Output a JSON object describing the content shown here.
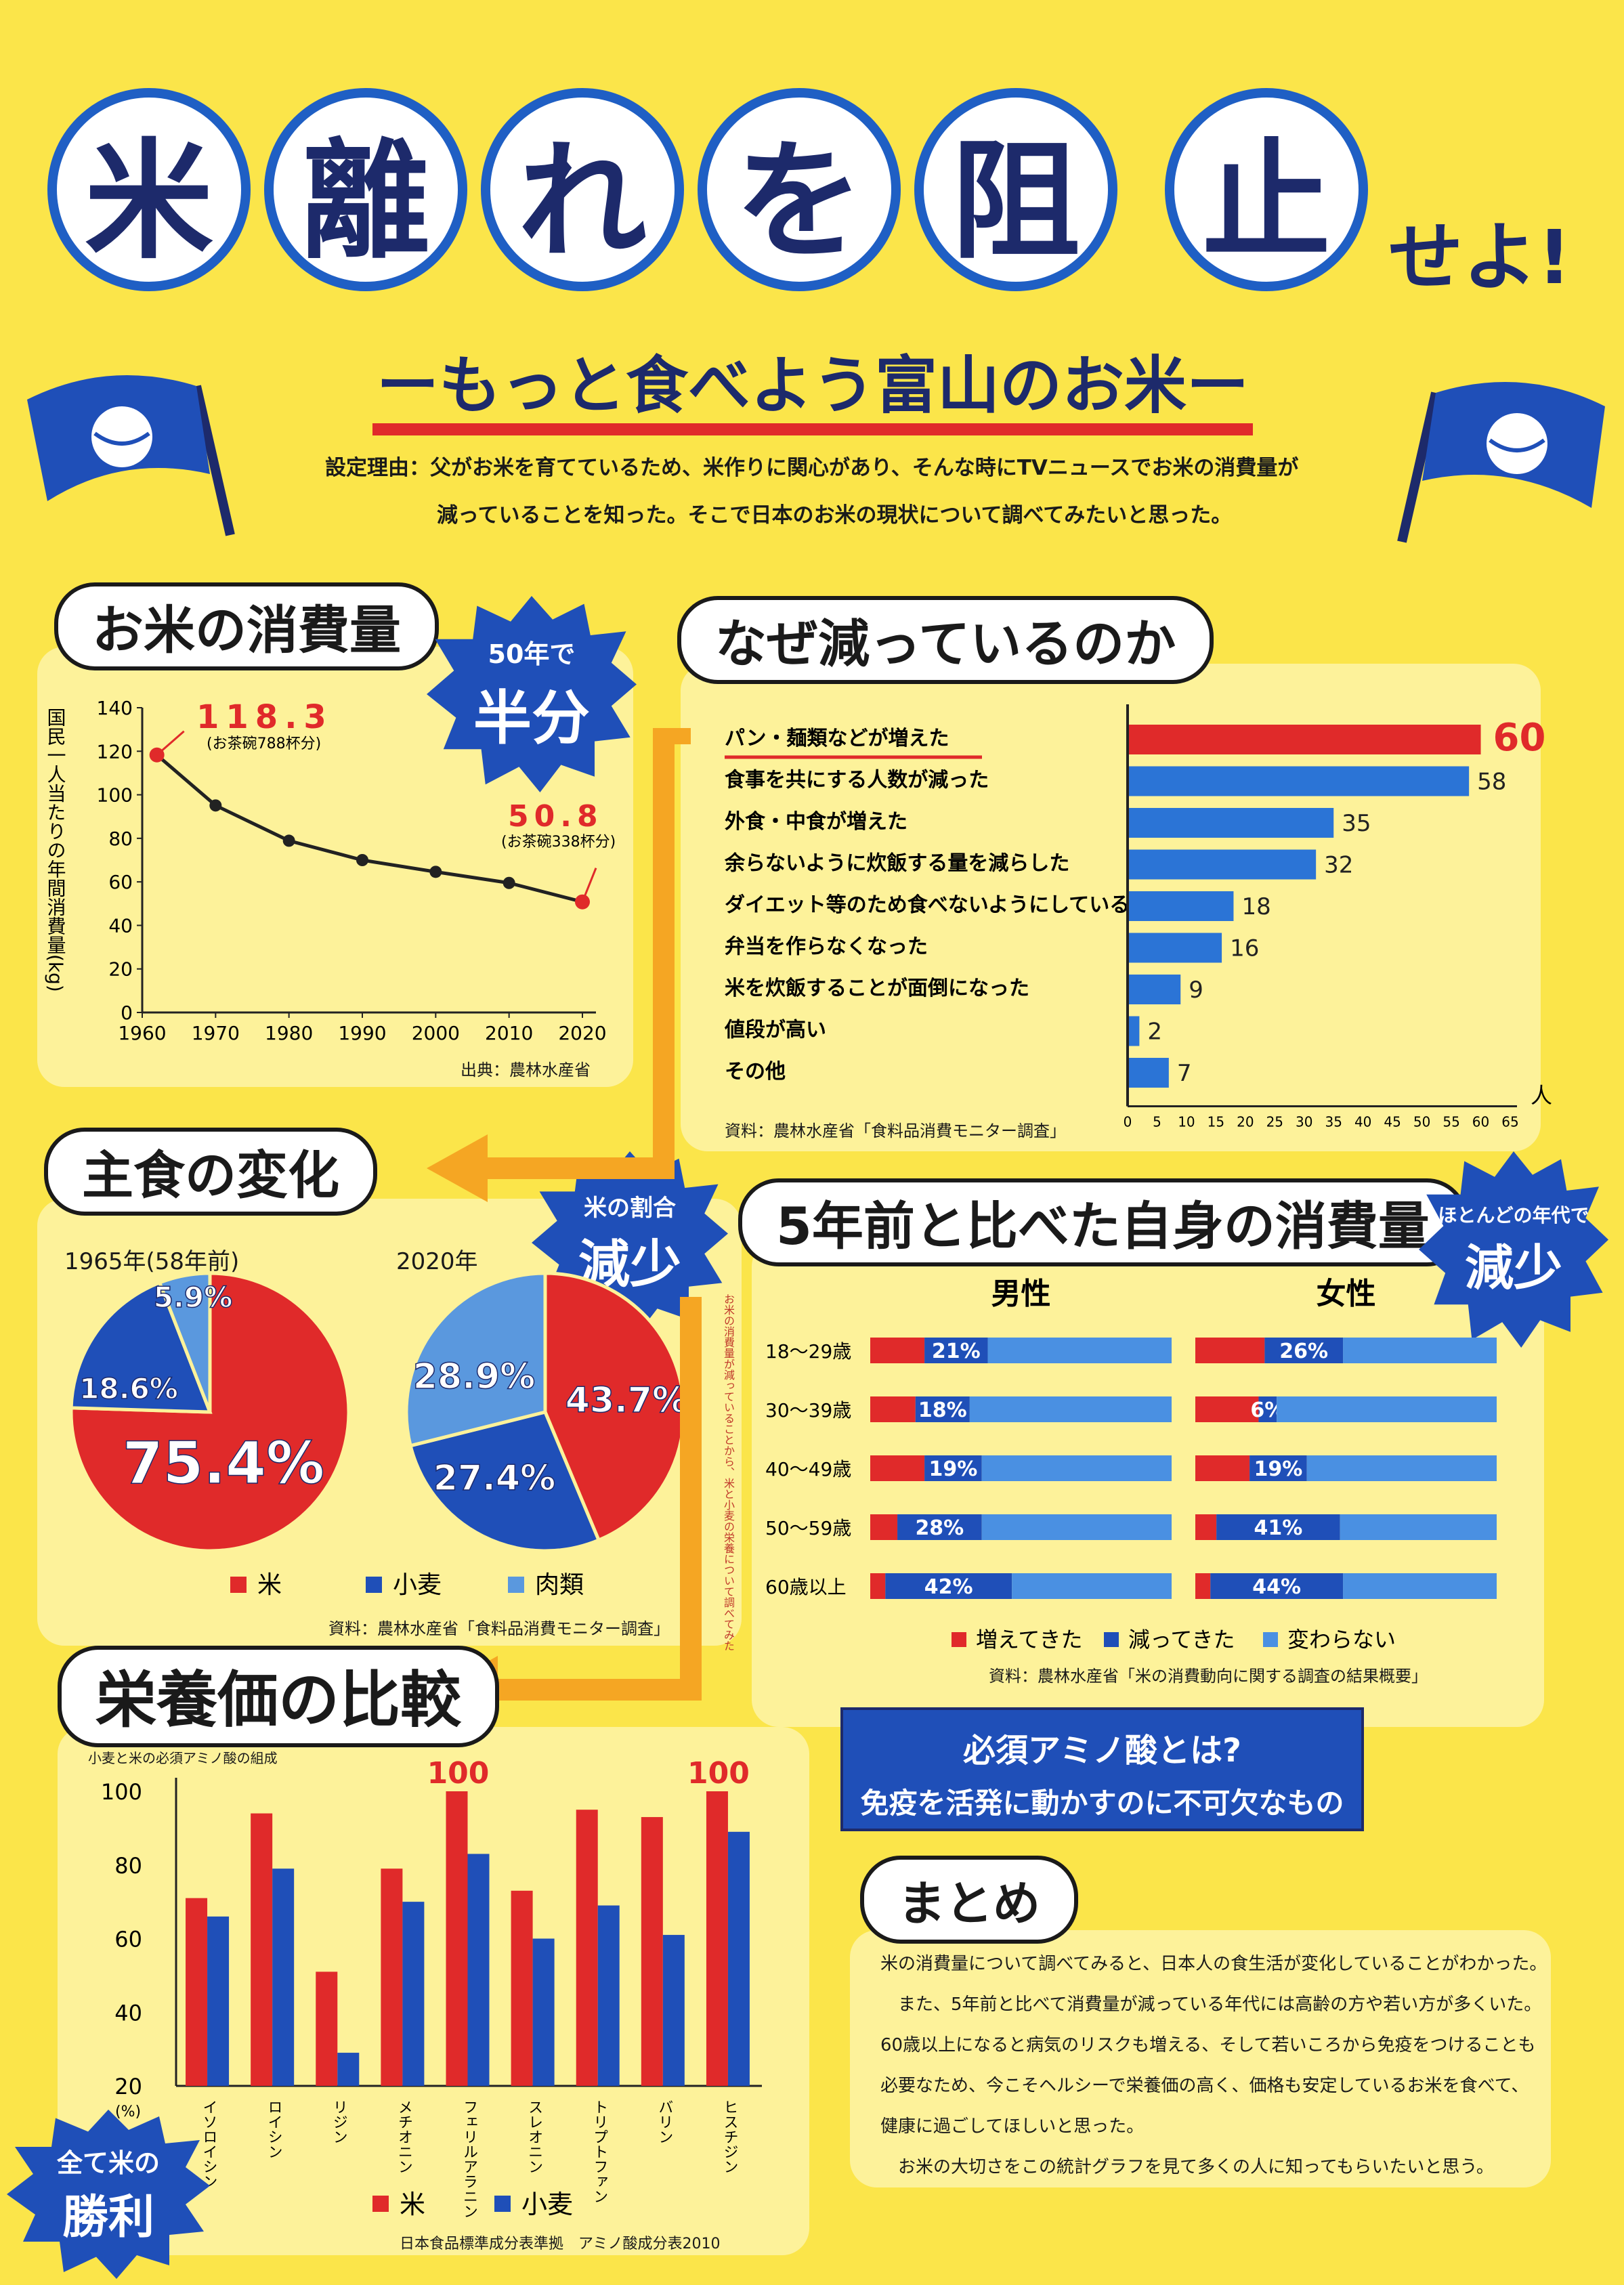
{
  "title": {
    "chars": [
      "米",
      "離",
      "れ",
      "を",
      "阻",
      "止"
    ],
    "suffix": "せよ!",
    "subtitle": "ーもっと食べよう富山のお米ー",
    "reason_line1": "設定理由：父がお米を育てているため、米作りに関心があり、そんな時にTVニュースでお米の消費量が",
    "reason_line2": "減っていることを知った。そこで日本のお米の現状について調べてみたいと思った。"
  },
  "colors": {
    "rice": "#e02a2a",
    "wheat": "#1f4fb8",
    "meat": "#5a98de",
    "background": "#fbe54a",
    "panel": "#fdf29a"
  },
  "sections": {
    "consumption": "お米の消費量",
    "why": "なぜ減っているのか",
    "staple": "主食の変化",
    "self": "5年前と比べた自身の消費量",
    "nutrition": "栄養価の比較",
    "summary": "まとめ"
  },
  "bursts": {
    "half_top": "50年で",
    "half_main": "半分",
    "ratio_top": "米の割合",
    "ratio_main": "減少",
    "ages_top": "ほとんどの年代で",
    "ages_main": "減少",
    "win_top": "全て米の",
    "win_main": "勝利"
  },
  "arrow_text": "お米の消費量が減っていることから、米と小麦の栄養について調べてみた",
  "amino": {
    "title": "必須アミノ酸とは?",
    "text": "免疫を活発に動かすのに不可欠なもの"
  },
  "summary_lines": [
    "米の消費量について調べてみると、日本人の食生活が変化していることがわかった。",
    "　また、5年前と比べて消費量が減っている年代には高齢の方や若い方が多くいた。",
    "60歳以上になると病気のリスクも増える、そして若いころから免疫をつけることも",
    "必要なため、今こそヘルシーで栄養価の高く、価格も安定しているお米を食べて、",
    "健康に過ごしてほしいと思った。",
    "　お米の大切さをこの統計グラフを見て多くの人に知ってもらいたいと思う。"
  ],
  "chart_data": [
    {
      "type": "line",
      "ylabel": "国民一人当たりの年間消費量(kg)",
      "x": [
        1962,
        1970,
        1980,
        1990,
        2000,
        2010,
        2020
      ],
      "values": [
        118.3,
        95.1,
        78.9,
        70.0,
        64.6,
        59.5,
        50.8
      ],
      "xlim": [
        1960,
        2020
      ],
      "ylim": [
        0,
        140
      ],
      "xticks": [
        1960,
        1970,
        1980,
        1990,
        2000,
        2010,
        2020
      ],
      "yticks": [
        0,
        20,
        40,
        60,
        80,
        100,
        120,
        140
      ],
      "annotations": [
        {
          "value": "118.3",
          "note": "(お茶碗788杯分)"
        },
        {
          "value": "50.8",
          "note": "(お茶碗338杯分)"
        }
      ],
      "source": "出典：農林水産省"
    },
    {
      "type": "bar",
      "orientation": "horizontal",
      "categories": [
        "パン・麺類などが増えた",
        "食事を共にする人数が減った",
        "外食・中食が増えた",
        "余らないように炊飯する量を減らした",
        "ダイエット等のため食べないようにしている",
        "弁当を作らなくなった",
        "米を炊飯することが面倒になった",
        "値段が高い",
        "その他"
      ],
      "values": [
        60,
        58,
        35,
        32,
        18,
        16,
        9,
        2,
        7
      ],
      "xlim": [
        0,
        65
      ],
      "xticks": [
        0,
        5,
        10,
        15,
        20,
        25,
        30,
        35,
        40,
        45,
        50,
        55,
        60,
        65
      ],
      "unit": "人",
      "source": "資料：農林水産省「食料品消費モニター調査」"
    },
    {
      "type": "pie",
      "title": "1965年(58年前)",
      "labels": [
        "米",
        "小麦",
        "肉類"
      ],
      "values": [
        75.4,
        18.6,
        5.9
      ],
      "value_labels": [
        "75.4%",
        "18.6%",
        "5.9%"
      ]
    },
    {
      "type": "pie",
      "title": "2020年",
      "labels": [
        "米",
        "小麦",
        "肉類"
      ],
      "values": [
        43.7,
        27.4,
        28.9
      ],
      "value_labels": [
        "43.7%",
        "27.4%",
        "28.9%"
      ],
      "legend": [
        "米",
        "小麦",
        "肉類"
      ],
      "source": "資料：農林水産省「食料品消費モニター調査」"
    },
    {
      "type": "bar",
      "orientation": "horizontal",
      "stacked": true,
      "groups": [
        "男性",
        "女性"
      ],
      "categories": [
        "18〜29歳",
        "30〜39歳",
        "40〜49歳",
        "50〜59歳",
        "60歳以上"
      ],
      "series": [
        {
          "name": "増えてきた",
          "male": [
            18,
            15,
            18,
            9,
            5
          ],
          "female": [
            23,
            21,
            18,
            7,
            5
          ]
        },
        {
          "name": "減ってきた",
          "male": [
            21,
            18,
            19,
            28,
            42
          ],
          "female": [
            26,
            6,
            19,
            41,
            44
          ]
        },
        {
          "name": "変わらない",
          "male": [
            61,
            67,
            63,
            63,
            53
          ],
          "female": [
            51,
            73,
            63,
            52,
            51
          ]
        }
      ],
      "value_labels_male": [
        "21%",
        "18%",
        "19%",
        "28%",
        "42%"
      ],
      "value_labels_female": [
        "26%",
        "6%",
        "19%",
        "41%",
        "44%"
      ],
      "source": "資料：農林水産省「米の消費動向に関する調査の結果概要」"
    },
    {
      "type": "bar",
      "title": "小麦と米の必須アミノ酸の組成",
      "categories": [
        "イソロイシン",
        "ロイシン",
        "リジン",
        "メチオニン",
        "フェリルアラニン",
        "スレオニン",
        "トリプトファン",
        "バリン",
        "ヒスチジン"
      ],
      "series": [
        {
          "name": "米",
          "values": [
            71,
            94,
            51,
            79,
            100,
            73,
            95,
            93,
            100
          ]
        },
        {
          "name": "小麦",
          "values": [
            66,
            79,
            29,
            70,
            83,
            60,
            69,
            61,
            89
          ]
        }
      ],
      "ylim": [
        20,
        100
      ],
      "yticks": [
        20,
        40,
        60,
        80,
        100
      ],
      "ylabel": "(%)",
      "labels_top": [
        "100",
        "100"
      ],
      "source": "日本食品標準成分表準拠　アミノ酸成分表2010"
    }
  ]
}
